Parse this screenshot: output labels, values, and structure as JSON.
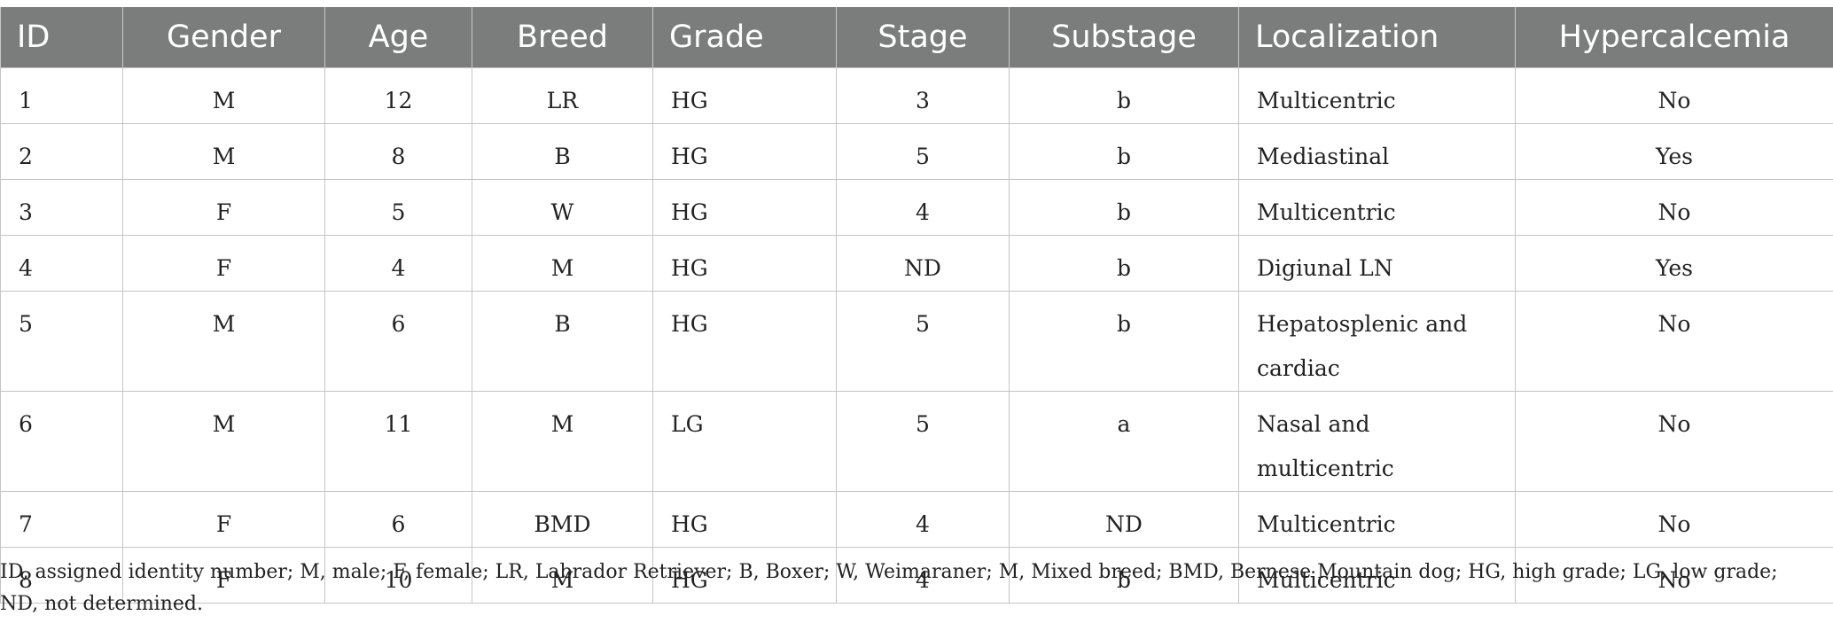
{
  "table": {
    "headers": [
      "ID",
      "Gender",
      "Age",
      "Breed",
      "Grade",
      "Stage",
      "Substage",
      "Localization",
      "Hypercalcemia"
    ],
    "rows": [
      [
        "1",
        "M",
        "12",
        "LR",
        "HG",
        "3",
        "b",
        "Multicentric",
        "No"
      ],
      [
        "2",
        "M",
        "8",
        "B",
        "HG",
        "5",
        "b",
        "Mediastinal",
        "Yes"
      ],
      [
        "3",
        "F",
        "5",
        "W",
        "HG",
        "4",
        "b",
        "Multicentric",
        "No"
      ],
      [
        "4",
        "F",
        "4",
        "M",
        "HG",
        "ND",
        "b",
        "Digiunal LN",
        "Yes"
      ],
      [
        "5",
        "M",
        "6",
        "B",
        "HG",
        "5",
        "b",
        "Hepatosplenic and cardiac",
        "No"
      ],
      [
        "6",
        "M",
        "11",
        "M",
        "LG",
        "5",
        "a",
        "Nasal and multicentric",
        "No"
      ],
      [
        "7",
        "F",
        "6",
        "BMD",
        "HG",
        "4",
        "ND",
        "Multicentric",
        "No"
      ],
      [
        "8",
        "F",
        "10",
        "M",
        "HG",
        "4",
        "b",
        "Multicentric",
        "No"
      ]
    ]
  },
  "footnote": "ID, assigned identity number; M, male; F, female; LR, Labrador Retriever; B, Boxer; W, Weimaraner; M, Mixed breed; BMD, Bernese Mountain dog; HG, high grade; LG, low grade; ND, not determined."
}
